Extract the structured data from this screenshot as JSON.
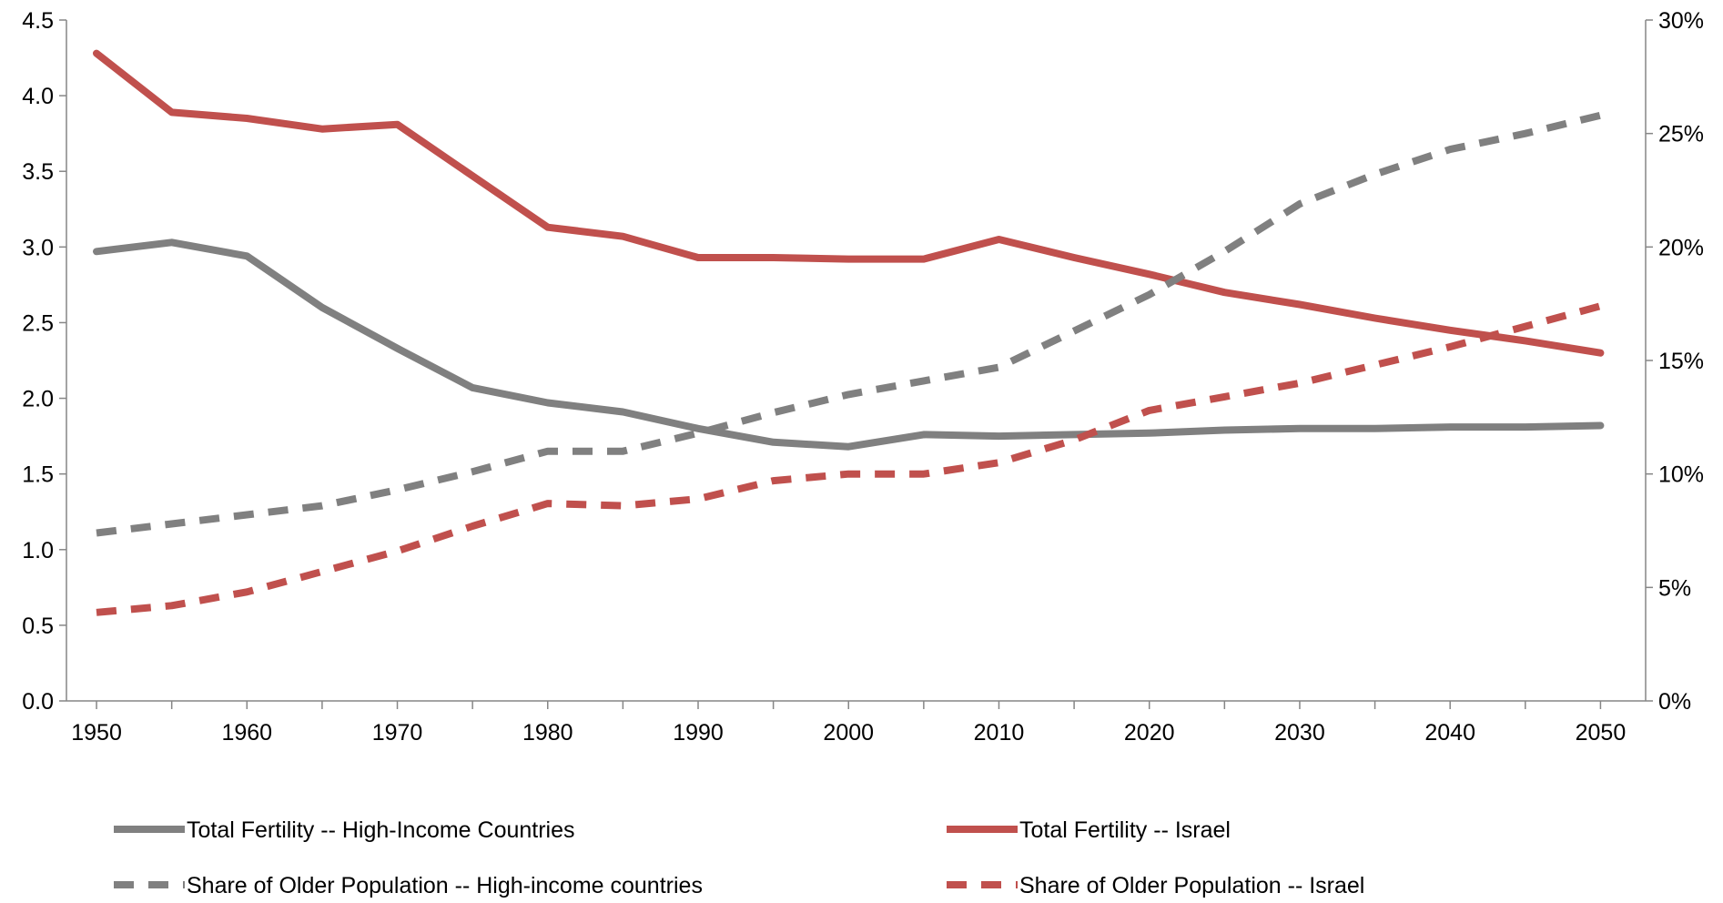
{
  "chart_data": {
    "type": "line",
    "title": "",
    "xlabel": "",
    "ylabel": "",
    "y2label": "",
    "xlim": [
      1948,
      2053
    ],
    "ylim": [
      0,
      4.5
    ],
    "y2lim": [
      0,
      30
    ],
    "x_ticks": [
      "1950",
      "1960",
      "1970",
      "1980",
      "1990",
      "2000",
      "2010",
      "2020",
      "2030",
      "2040",
      "2050"
    ],
    "y_ticks": [
      "0.0",
      "0.5",
      "1.0",
      "1.5",
      "2.0",
      "2.5",
      "3.0",
      "3.5",
      "4.0",
      "4.5"
    ],
    "y2_ticks": [
      "0%",
      "5%",
      "10%",
      "15%",
      "20%",
      "25%",
      "30%"
    ],
    "x": [
      1950,
      1955,
      1960,
      1965,
      1970,
      1975,
      1980,
      1985,
      1990,
      1995,
      2000,
      2005,
      2010,
      2015,
      2020,
      2025,
      2030,
      2035,
      2040,
      2045,
      2050
    ],
    "series": [
      {
        "name": "Total Fertility -- High-Income Countries",
        "axis": "left",
        "style": "solid",
        "color": "#808080",
        "values": [
          2.97,
          3.03,
          2.94,
          2.6,
          2.33,
          2.07,
          1.97,
          1.91,
          1.8,
          1.71,
          1.68,
          1.76,
          1.75,
          1.76,
          1.77,
          1.79,
          1.8,
          1.8,
          1.81,
          1.81,
          1.82
        ]
      },
      {
        "name": "Total Fertility -- Israel",
        "axis": "left",
        "style": "solid",
        "color": "#c0504d",
        "values": [
          4.28,
          3.89,
          3.85,
          3.78,
          3.81,
          3.47,
          3.13,
          3.07,
          2.93,
          2.93,
          2.92,
          2.92,
          3.05,
          2.93,
          2.82,
          2.7,
          2.62,
          2.53,
          2.45,
          2.38,
          2.3
        ]
      },
      {
        "name": "Share of Older Population -- High-income countries",
        "axis": "right",
        "style": "dashed",
        "color": "#808080",
        "values": [
          7.4,
          7.8,
          8.2,
          8.6,
          9.3,
          10.1,
          11.0,
          11.0,
          11.8,
          12.7,
          13.5,
          14.1,
          14.7,
          16.3,
          17.9,
          19.8,
          21.9,
          23.2,
          24.3,
          25.0,
          25.8
        ]
      },
      {
        "name": "Share of Older Population -- Israel",
        "axis": "right",
        "style": "dashed",
        "color": "#c0504d",
        "values": [
          3.9,
          4.2,
          4.8,
          5.7,
          6.6,
          7.7,
          8.7,
          8.6,
          8.9,
          9.7,
          10.0,
          10.0,
          10.5,
          11.5,
          12.8,
          13.4,
          14.0,
          14.8,
          15.6,
          16.5,
          17.4
        ]
      }
    ],
    "legend_position": "bottom",
    "grid": false
  }
}
